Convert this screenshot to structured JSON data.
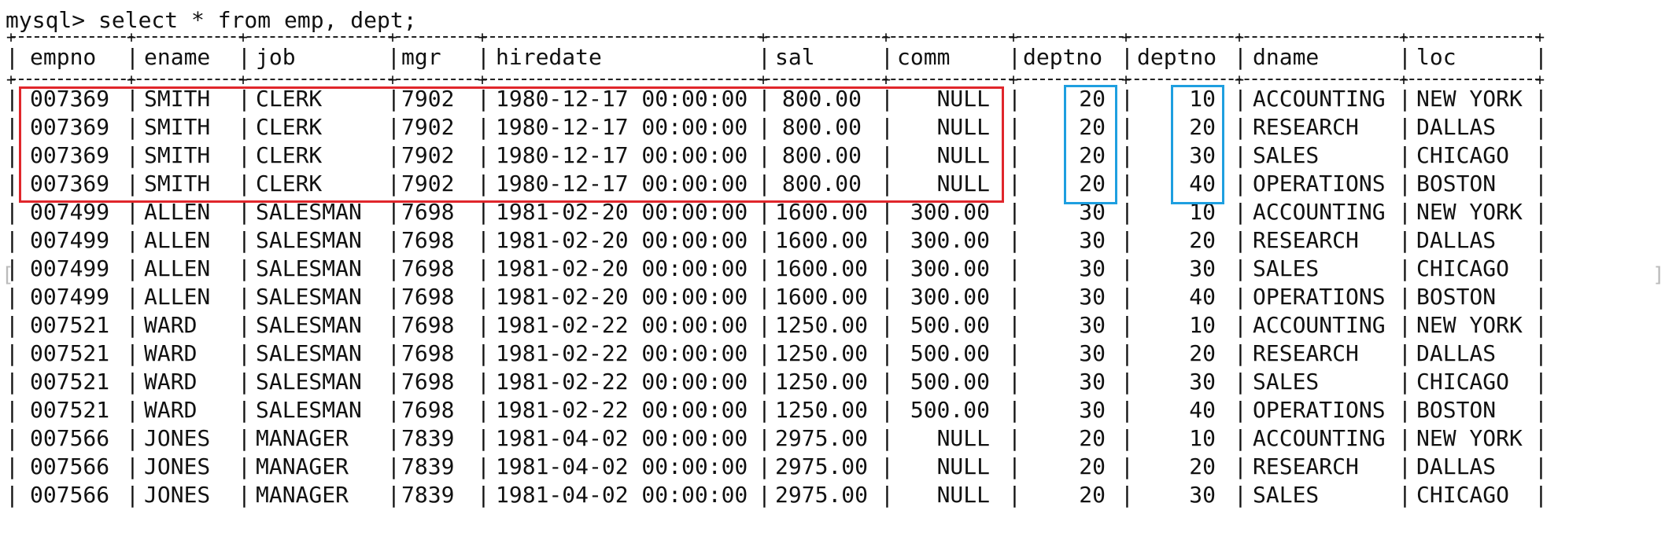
{
  "prompt_line": "mysql> select * from emp, dept;",
  "highlights": {
    "emp_rows_color": "#e0262b",
    "deptno_color": "#1e9fe0"
  },
  "edge_markers": {
    "left": "[",
    "right": "]"
  },
  "columns": [
    {
      "name": "empno",
      "align": "left"
    },
    {
      "name": "ename",
      "align": "left"
    },
    {
      "name": "job",
      "align": "left"
    },
    {
      "name": "mgr",
      "align": "left"
    },
    {
      "name": "hiredate",
      "align": "left"
    },
    {
      "name": "sal",
      "align": "left"
    },
    {
      "name": "comm",
      "align": "left"
    },
    {
      "name": "deptno",
      "align": "left"
    },
    {
      "name": "deptno",
      "align": "left"
    },
    {
      "name": "dname",
      "align": "left"
    },
    {
      "name": "loc",
      "align": "left"
    }
  ],
  "rows": [
    [
      "007369",
      "SMITH",
      "CLERK",
      "7902",
      "1980-12-17 00:00:00",
      "800.00",
      "NULL",
      "20",
      "10",
      "ACCOUNTING",
      "NEW YORK"
    ],
    [
      "007369",
      "SMITH",
      "CLERK",
      "7902",
      "1980-12-17 00:00:00",
      "800.00",
      "NULL",
      "20",
      "20",
      "RESEARCH",
      "DALLAS"
    ],
    [
      "007369",
      "SMITH",
      "CLERK",
      "7902",
      "1980-12-17 00:00:00",
      "800.00",
      "NULL",
      "20",
      "30",
      "SALES",
      "CHICAGO"
    ],
    [
      "007369",
      "SMITH",
      "CLERK",
      "7902",
      "1980-12-17 00:00:00",
      "800.00",
      "NULL",
      "20",
      "40",
      "OPERATIONS",
      "BOSTON"
    ],
    [
      "007499",
      "ALLEN",
      "SALESMAN",
      "7698",
      "1981-02-20 00:00:00",
      "1600.00",
      "300.00",
      "30",
      "10",
      "ACCOUNTING",
      "NEW YORK"
    ],
    [
      "007499",
      "ALLEN",
      "SALESMAN",
      "7698",
      "1981-02-20 00:00:00",
      "1600.00",
      "300.00",
      "30",
      "20",
      "RESEARCH",
      "DALLAS"
    ],
    [
      "007499",
      "ALLEN",
      "SALESMAN",
      "7698",
      "1981-02-20 00:00:00",
      "1600.00",
      "300.00",
      "30",
      "30",
      "SALES",
      "CHICAGO"
    ],
    [
      "007499",
      "ALLEN",
      "SALESMAN",
      "7698",
      "1981-02-20 00:00:00",
      "1600.00",
      "300.00",
      "30",
      "40",
      "OPERATIONS",
      "BOSTON"
    ],
    [
      "007521",
      "WARD",
      "SALESMAN",
      "7698",
      "1981-02-22 00:00:00",
      "1250.00",
      "500.00",
      "30",
      "10",
      "ACCOUNTING",
      "NEW YORK"
    ],
    [
      "007521",
      "WARD",
      "SALESMAN",
      "7698",
      "1981-02-22 00:00:00",
      "1250.00",
      "500.00",
      "30",
      "20",
      "RESEARCH",
      "DALLAS"
    ],
    [
      "007521",
      "WARD",
      "SALESMAN",
      "7698",
      "1981-02-22 00:00:00",
      "1250.00",
      "500.00",
      "30",
      "30",
      "SALES",
      "CHICAGO"
    ],
    [
      "007521",
      "WARD",
      "SALESMAN",
      "7698",
      "1981-02-22 00:00:00",
      "1250.00",
      "500.00",
      "30",
      "40",
      "OPERATIONS",
      "BOSTON"
    ],
    [
      "007566",
      "JONES",
      "MANAGER",
      "7839",
      "1981-04-02 00:00:00",
      "2975.00",
      "NULL",
      "20",
      "10",
      "ACCOUNTING",
      "NEW YORK"
    ],
    [
      "007566",
      "JONES",
      "MANAGER",
      "7839",
      "1981-04-02 00:00:00",
      "2975.00",
      "NULL",
      "20",
      "20",
      "RESEARCH",
      "DALLAS"
    ],
    [
      "007566",
      "JONES",
      "MANAGER",
      "7839",
      "1981-04-02 00:00:00",
      "2975.00",
      "NULL",
      "20",
      "30",
      "SALES",
      "CHICAGO"
    ]
  ]
}
